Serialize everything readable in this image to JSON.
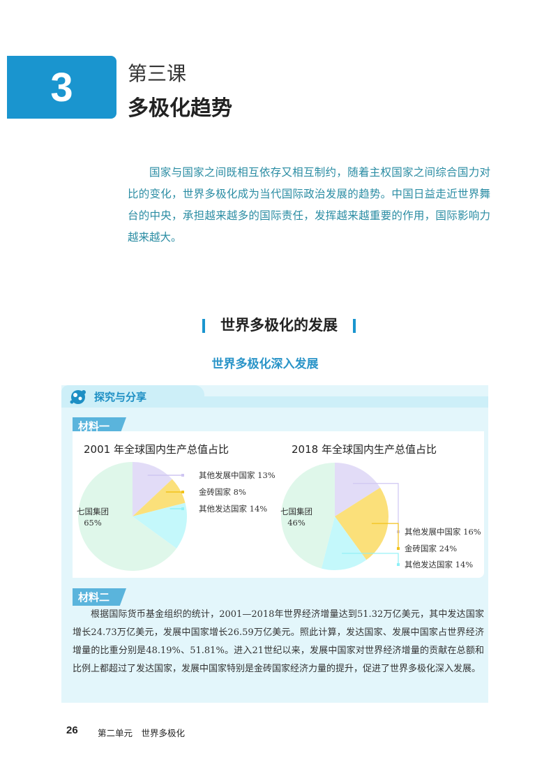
{
  "header": {
    "lesson_number": "3",
    "lesson_label": "第三课",
    "title": "多极化趋势"
  },
  "intro": "国家与国家之间既相互依存又相互制约，随着主权国家之间综合国力对比的变化，世界多极化成为当代国际政治发展的趋势。中国日益走近世界舞台的中央，承担越来越多的国际责任，发挥越来越重要的作用，国际影响力越来越大。",
  "section_title": "世界多极化的发展",
  "subsection_title": "世界多极化深入发展",
  "explore": {
    "label": "探究与分享",
    "icon": "molecule-icon"
  },
  "material1": {
    "tag": "材料一"
  },
  "material2": {
    "tag": "材料二",
    "text": "根据国际货币基金组织的统计，2001—2018年世界经济增量达到51.32万亿美元，其中发达国家增长24.73万亿美元，发展中国家增长26.59万亿美元。照此计算，发达国家、发展中国家占世界经济增量的比重分别是48.19%、51.81%。进入21世纪以来，发展中国家对世界经济增量的贡献在总额和比例上都超过了发达国家，发展中国家特别是金砖国家经济力量的提升，促进了世界多极化深入发展。"
  },
  "footer": {
    "page": "26",
    "unit": "第二单元　世界多极化"
  },
  "chart_data": [
    {
      "type": "pie",
      "title": "2001 年全球国内生产总值占比",
      "slices": [
        {
          "label": "其他发展中国家 13%",
          "value": 13,
          "color": "#e2dcf7"
        },
        {
          "label": "金砖国家 8%",
          "value": 8,
          "color": "#fbe07a"
        },
        {
          "label": "其他发达国家 14%",
          "value": 14,
          "color": "#c4f8fb"
        },
        {
          "label": "七国集团",
          "pct": "65%",
          "value": 65,
          "color": "#dff7ea"
        }
      ]
    },
    {
      "type": "pie",
      "title": "2018 年全球国内生产总值占比",
      "slices": [
        {
          "label": "其他发展中国家 16%",
          "value": 16,
          "color": "#e2dcf7"
        },
        {
          "label": "金砖国家 24%",
          "value": 24,
          "color": "#fbe07a"
        },
        {
          "label": "其他发达国家 14%",
          "value": 14,
          "color": "#c4f8fb"
        },
        {
          "label": "七国集团",
          "pct": "46%",
          "value": 46,
          "color": "#dff7ea"
        }
      ]
    }
  ]
}
